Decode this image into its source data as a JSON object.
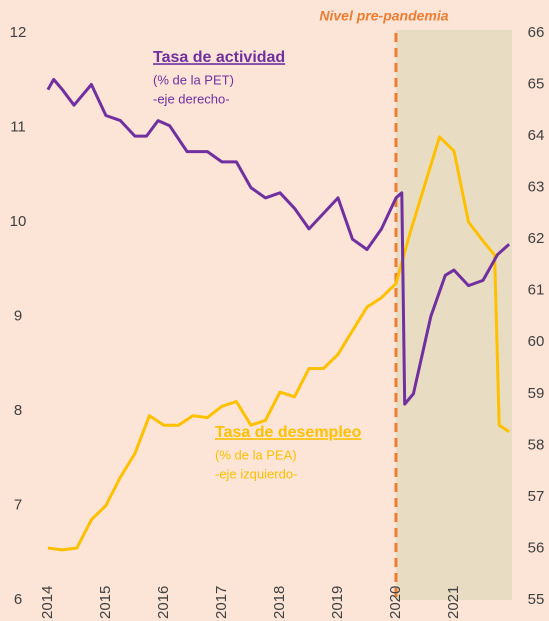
{
  "chart_data": {
    "type": "line",
    "marker": {
      "x": 2020,
      "label": "Nivel pre-pandemia",
      "color": "#ed7d31",
      "shade": "#e8dcc3"
    },
    "xlim": [
      2013.95,
      2022
    ],
    "xticks": [
      2014,
      2015,
      2016,
      2017,
      2018,
      2019,
      2020,
      2021
    ],
    "ylim": [
      6,
      12
    ],
    "yticks": [
      6,
      7,
      8,
      9,
      10,
      11,
      12
    ],
    "y2lim": [
      55,
      66
    ],
    "y2ticks": [
      55,
      56,
      57,
      58,
      59,
      60,
      61,
      62,
      63,
      64,
      65,
      66
    ],
    "series": [
      {
        "name": "Tasa de desempleo",
        "unit_note": "(% de la PEA)",
        "axis_note": "-eje izquierdo-",
        "color": "#ffc000",
        "axis": "y",
        "x": [
          2014.0,
          2014.25,
          2014.5,
          2014.75,
          2015.0,
          2015.25,
          2015.5,
          2015.75,
          2016.0,
          2016.25,
          2016.5,
          2016.75,
          2017.0,
          2017.25,
          2017.5,
          2017.75,
          2018.0,
          2018.25,
          2018.5,
          2018.75,
          2019.0,
          2019.25,
          2019.5,
          2019.75,
          2020.0,
          2020.25,
          2020.5,
          2020.75,
          2021.0,
          2021.25,
          2021.5,
          2021.7,
          2021.78,
          2021.95
        ],
        "values": [
          6.55,
          6.53,
          6.55,
          6.85,
          7.0,
          7.3,
          7.55,
          7.95,
          7.85,
          7.85,
          7.95,
          7.93,
          8.05,
          8.1,
          7.85,
          7.9,
          8.2,
          8.15,
          8.45,
          8.45,
          8.6,
          8.85,
          9.1,
          9.2,
          9.35,
          9.9,
          10.4,
          10.9,
          10.75,
          10.0,
          9.8,
          9.65,
          7.85,
          7.78
        ]
      },
      {
        "name": "Tasa de actividad",
        "unit_note": "(% de la PET)",
        "axis_note": "-eje derecho-",
        "color": "#7030a0",
        "axis": "y2",
        "x": [
          2014.0,
          2014.1,
          2014.25,
          2014.45,
          2014.75,
          2015.0,
          2015.25,
          2015.5,
          2015.7,
          2015.9,
          2016.1,
          2016.4,
          2016.75,
          2017.0,
          2017.25,
          2017.5,
          2017.75,
          2018.0,
          2018.25,
          2018.5,
          2018.75,
          2019.0,
          2019.25,
          2019.5,
          2019.75,
          2020.0,
          2020.1,
          2020.15,
          2020.3,
          2020.6,
          2020.85,
          2021.0,
          2021.25,
          2021.5,
          2021.75,
          2021.95
        ],
        "values": [
          64.9,
          65.1,
          64.9,
          64.6,
          65.0,
          64.4,
          64.3,
          64.0,
          64.0,
          64.3,
          64.2,
          63.7,
          63.7,
          63.5,
          63.5,
          63.0,
          62.8,
          62.9,
          62.6,
          62.2,
          62.5,
          62.8,
          62.0,
          61.8,
          62.2,
          62.8,
          62.9,
          58.8,
          59.0,
          60.5,
          61.3,
          61.4,
          61.1,
          61.2,
          61.7,
          61.9
        ]
      }
    ]
  }
}
